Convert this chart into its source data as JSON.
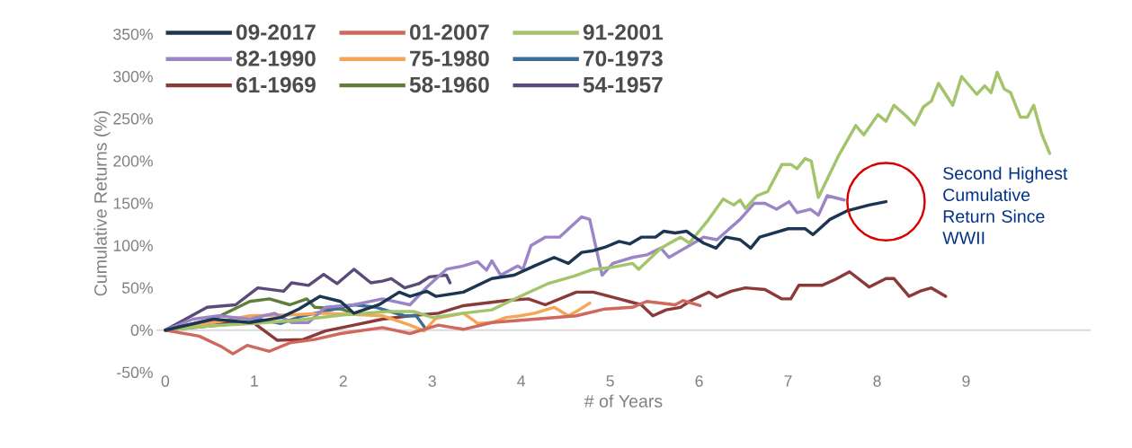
{
  "chart_data": {
    "type": "line",
    "xlabel": "# of Years",
    "ylabel": "Cumulative Returns (%)",
    "xlim": [
      -0.1,
      10.4
    ],
    "ylim": [
      -50,
      350
    ],
    "xticks": [
      0,
      1,
      2,
      3,
      4,
      5,
      6,
      7,
      8,
      9
    ],
    "yticks": [
      {
        "value": -50,
        "label": "-50%"
      },
      {
        "value": 0,
        "label": "0%"
      },
      {
        "value": 50,
        "label": "50%"
      },
      {
        "value": 100,
        "label": "100%"
      },
      {
        "value": 150,
        "label": "150%"
      },
      {
        "value": 200,
        "label": "200%"
      },
      {
        "value": 250,
        "label": "250%"
      },
      {
        "value": 300,
        "label": "300%"
      },
      {
        "value": 350,
        "label": "350%"
      }
    ],
    "legend": "top left",
    "marker": "none",
    "line_style": "solid",
    "ref_lines": [
      {
        "axis": "y",
        "value": 0,
        "color": "#d9d9d9"
      }
    ],
    "annotations": [
      "Second Highest Cumulative Return Since WWII"
    ],
    "series": [
      {
        "name": "09-2017",
        "color": "#1c3553",
        "x": [
          0,
          0.54,
          0.95,
          1.3,
          1.5,
          1.74,
          1.97,
          2.12,
          2.4,
          2.63,
          2.75,
          2.94,
          3.04,
          3.35,
          3.67,
          3.92,
          4.15,
          4.37,
          4.53,
          4.68,
          4.81,
          4.94,
          5.1,
          5.22,
          5.35,
          5.51,
          5.6,
          5.73,
          5.86,
          5.95,
          6.05,
          6.19,
          6.3,
          6.46,
          6.58,
          6.68,
          7.0,
          7.19,
          7.28,
          7.47,
          7.66,
          7.91,
          8.1
        ],
        "values": [
          0,
          13,
          9,
          15,
          25,
          40,
          34,
          20,
          30,
          45,
          40,
          46,
          40,
          45,
          61,
          65,
          76,
          86,
          79,
          92,
          94,
          98,
          105,
          102,
          110,
          110,
          117,
          115,
          117,
          110,
          103,
          97,
          110,
          107,
          97,
          110,
          120,
          120,
          113,
          131,
          141,
          148,
          152
        ]
      },
      {
        "name": "01-2007",
        "color": "#d0695d",
        "x": [
          0,
          0.38,
          0.64,
          0.76,
          0.92,
          1.17,
          1.4,
          1.68,
          1.97,
          2.44,
          2.75,
          3.07,
          3.35,
          3.67,
          4.15,
          4.62,
          4.94,
          5.25,
          5.41,
          5.73,
          5.82,
          6.01
        ],
        "values": [
          0,
          -7,
          -20,
          -28,
          -18,
          -25,
          -15,
          -11,
          -4,
          3,
          -4,
          6,
          1,
          9,
          13,
          17,
          25,
          27,
          34,
          30,
          35,
          29
        ]
      },
      {
        "name": "91-2001",
        "color": "#a3c46a",
        "x": [
          0,
          0.5,
          1,
          1.5,
          2,
          2.5,
          2.8,
          3.0,
          3.35,
          3.67,
          3.99,
          4.3,
          4.6,
          4.81,
          5.0,
          5.25,
          5.32,
          5.57,
          5.67,
          5.79,
          5.89,
          6.1,
          6.27,
          6.39,
          6.46,
          6.52,
          6.65,
          6.77,
          6.93,
          7.03,
          7.1,
          7.19,
          7.26,
          7.34,
          7.57,
          7.76,
          7.85,
          8.01,
          8.1,
          8.19,
          8.33,
          8.42,
          8.52,
          8.61,
          8.69,
          8.85,
          8.95,
          9.12,
          9.21,
          9.28,
          9.35,
          9.43,
          9.5,
          9.61,
          9.69,
          9.76,
          9.85,
          9.94
        ],
        "values": [
          0,
          5,
          8,
          12,
          18,
          22,
          22,
          15,
          20,
          24,
          40,
          55,
          64,
          72,
          74,
          79,
          72,
          97,
          103,
          110,
          103,
          130,
          155,
          148,
          154,
          144,
          159,
          164,
          196,
          196,
          191,
          203,
          200,
          157,
          207,
          242,
          231,
          255,
          247,
          266,
          253,
          243,
          264,
          271,
          292,
          266,
          300,
          279,
          289,
          281,
          305,
          285,
          281,
          252,
          252,
          266,
          232,
          209
        ]
      },
      {
        "name": "82-1990",
        "color": "#9b85c6",
        "x": [
          0,
          0.31,
          0.6,
          0.95,
          1.23,
          1.42,
          1.61,
          1.8,
          2.12,
          2.44,
          2.75,
          2.94,
          3.16,
          3.35,
          3.51,
          3.61,
          3.67,
          3.77,
          3.96,
          4.02,
          4.11,
          4.27,
          4.43,
          4.68,
          4.77,
          4.91,
          5.03,
          5.25,
          5.41,
          5.57,
          5.66,
          5.89,
          6.05,
          6.2,
          6.46,
          6.62,
          6.74,
          6.87,
          7.01,
          7.1,
          7.25,
          7.34,
          7.44,
          7.63
        ],
        "values": [
          0,
          13,
          17,
          13,
          20,
          9,
          9,
          27,
          30,
          37,
          30,
          51,
          72,
          76,
          81,
          71,
          82,
          65,
          76,
          72,
          100,
          110,
          110,
          134,
          131,
          65,
          79,
          86,
          89,
          97,
          86,
          100,
          110,
          107,
          131,
          150,
          150,
          143,
          152,
          139,
          143,
          136,
          159,
          154
        ]
      },
      {
        "name": "75-1980",
        "color": "#f5a553",
        "x": [
          0,
          0.3,
          0.6,
          0.95,
          1.4,
          1.8,
          2.44,
          2.75,
          2.91,
          3.04,
          3.35,
          3.51,
          3.67,
          3.83,
          3.99,
          4.15,
          4.37,
          4.53,
          4.65,
          4.77
        ],
        "values": [
          0,
          5,
          10,
          17,
          18,
          20,
          17,
          6,
          -1,
          14,
          20,
          8,
          9,
          15,
          17,
          20,
          27,
          17,
          24,
          32
        ]
      },
      {
        "name": "70-1973",
        "color": "#3d6e99",
        "x": [
          0,
          0.5,
          0.95,
          1.04,
          1.3,
          1.55,
          1.87,
          2.12,
          2.37,
          2.69,
          2.82,
          2.91
        ],
        "values": [
          0,
          5,
          9,
          13,
          8,
          17,
          24,
          30,
          27,
          17,
          17,
          4
        ]
      },
      {
        "name": "61-1969",
        "color": "#8b3a3a",
        "x": [
          0,
          0.22,
          0.69,
          1.0,
          1.26,
          1.55,
          1.8,
          2.12,
          2.44,
          2.75,
          3.07,
          3.35,
          3.83,
          4.08,
          4.27,
          4.62,
          4.81,
          5.1,
          5.35,
          5.48,
          5.63,
          5.79,
          5.89,
          6.11,
          6.2,
          6.36,
          6.52,
          6.74,
          6.93,
          7.03,
          7.12,
          7.38,
          7.53,
          7.69,
          7.91,
          8.1,
          8.19,
          8.36,
          8.48,
          8.61,
          8.77
        ],
        "values": [
          0,
          3,
          9,
          8,
          -12,
          -11,
          -1,
          6,
          13,
          17,
          20,
          29,
          35,
          37,
          30,
          45,
          45,
          37,
          30,
          17,
          24,
          27,
          34,
          45,
          39,
          46,
          50,
          48,
          37,
          37,
          53,
          53,
          60,
          69,
          51,
          61,
          61,
          40,
          46,
          50,
          40
        ]
      },
      {
        "name": "58-1960",
        "color": "#5f7e3a",
        "x": [
          0,
          0.54,
          0.95,
          1.17,
          1.4,
          1.59,
          1.68,
          1.97,
          2.12
        ],
        "values": [
          0,
          13,
          34,
          37,
          30,
          37,
          27,
          25,
          20
        ]
      },
      {
        "name": "54-1957",
        "color": "#5b4b78",
        "x": [
          0,
          0.47,
          0.79,
          1.04,
          1.33,
          1.42,
          1.61,
          1.78,
          1.93,
          2.12,
          2.31,
          2.44,
          2.54,
          2.69,
          2.85,
          2.97,
          3.16,
          3.2
        ],
        "values": [
          0,
          27,
          30,
          50,
          46,
          56,
          53,
          66,
          55,
          72,
          56,
          58,
          61,
          50,
          55,
          63,
          65,
          56
        ]
      }
    ]
  }
}
